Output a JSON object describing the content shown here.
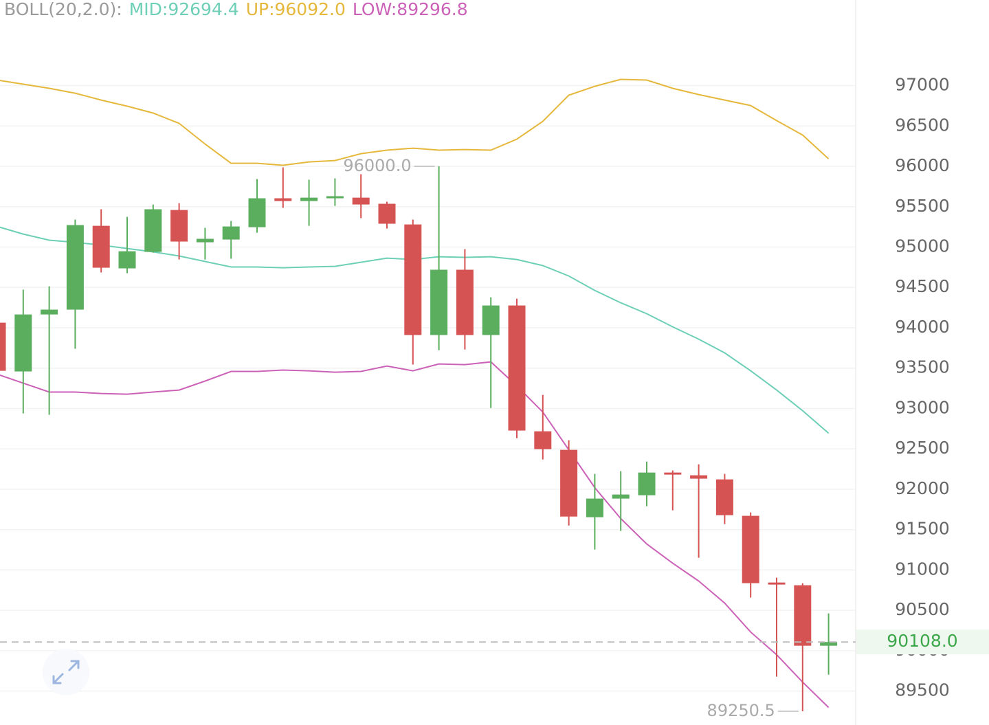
{
  "chart_data": {
    "type": "candlestick",
    "indicator": "BOLL(20,2.0):",
    "up_color": "#5aae5e",
    "down_color": "#d65353",
    "open": [
      94063,
      93459,
      94165,
      94225,
      95263,
      94736,
      94940,
      95459,
      95059,
      95093,
      95246,
      95604,
      95570,
      95604,
      95612,
      95536,
      95280,
      93910,
      94719,
      93910,
      94276,
      92718,
      92488,
      91654,
      91884,
      91926,
      92207,
      92173,
      92122,
      91671,
      90845,
      90811,
      90062
    ],
    "high": [
      94100,
      94472,
      94514,
      95340,
      95468,
      95374,
      95527,
      95544,
      95238,
      95323,
      95842,
      95987,
      95834,
      95851,
      95902,
      95561,
      95340,
      96000,
      94974,
      94378,
      94361,
      93169,
      92607,
      92190,
      92224,
      92343,
      92233,
      92309,
      92190,
      91713,
      90905,
      90837,
      90462
    ],
    "low": [
      93400,
      92939,
      92922,
      93740,
      94685,
      94676,
      94931,
      94846,
      94846,
      94855,
      95178,
      95485,
      95263,
      95510,
      95357,
      95229,
      93544,
      93722,
      93731,
      93007,
      92633,
      92369,
      91551,
      91254,
      91484,
      91790,
      91739,
      91152,
      91569,
      90658,
      89679,
      89250.5,
      89704
    ],
    "close": [
      93467,
      94165,
      94225,
      95272,
      94744,
      94948,
      95468,
      95068,
      95102,
      95255,
      95604,
      95570,
      95612,
      95630,
      95527,
      95289,
      93910,
      94719,
      93910,
      94276,
      92727,
      92497,
      91662,
      91884,
      91935,
      92207,
      92182,
      92131,
      91679,
      90837,
      90820,
      90062,
      90108
    ],
    "series": [
      {
        "name": "MID:92694.4",
        "color": "#6dcfb6",
        "values": [
          95255,
          95161,
          95085,
          95059,
          95025,
          94982,
          94940,
          94889,
          94821,
          94753,
          94753,
          94744,
          94753,
          94761,
          94812,
          94863,
          94846,
          94880,
          94872,
          94880,
          94846,
          94770,
          94642,
          94463,
          94310,
          94174,
          94012,
          93859,
          93689,
          93467,
          93229,
          92973,
          92694.4
        ]
      },
      {
        "name": "UP:96092.0",
        "color": "#e5b83c",
        "values": [
          97068,
          97017,
          96966,
          96906,
          96821,
          96745,
          96660,
          96532,
          96276,
          96038,
          96038,
          96013,
          96055,
          96072,
          96157,
          96200,
          96225,
          96200,
          96208,
          96200,
          96336,
          96557,
          96881,
          96991,
          97077,
          97068,
          96966,
          96889,
          96821,
          96753,
          96566,
          96387,
          96092
        ]
      },
      {
        "name": "LOW:89296.8",
        "color": "#cc62b8",
        "values": [
          93425,
          93314,
          93204,
          93204,
          93186,
          93178,
          93204,
          93229,
          93340,
          93459,
          93459,
          93476,
          93467,
          93450,
          93459,
          93527,
          93467,
          93552,
          93544,
          93578,
          93280,
          92956,
          92488,
          92020,
          91637,
          91322,
          91084,
          90863,
          90590,
          90232,
          89951,
          89611,
          89296.8
        ]
      }
    ],
    "ylim": [
      89080,
      98060
    ],
    "yticks": [
      89500,
      90000,
      90500,
      91000,
      91500,
      92000,
      92500,
      93000,
      93500,
      94000,
      94500,
      95000,
      95500,
      96000,
      96500,
      97000
    ],
    "grid": true,
    "annotations": [
      {
        "label": "96000.0",
        "value": 96000
      },
      {
        "label": "89250.5",
        "value": 89250.5
      }
    ],
    "current_price": {
      "value": 90108,
      "label": "90108.0",
      "color": "#3da84b"
    }
  }
}
